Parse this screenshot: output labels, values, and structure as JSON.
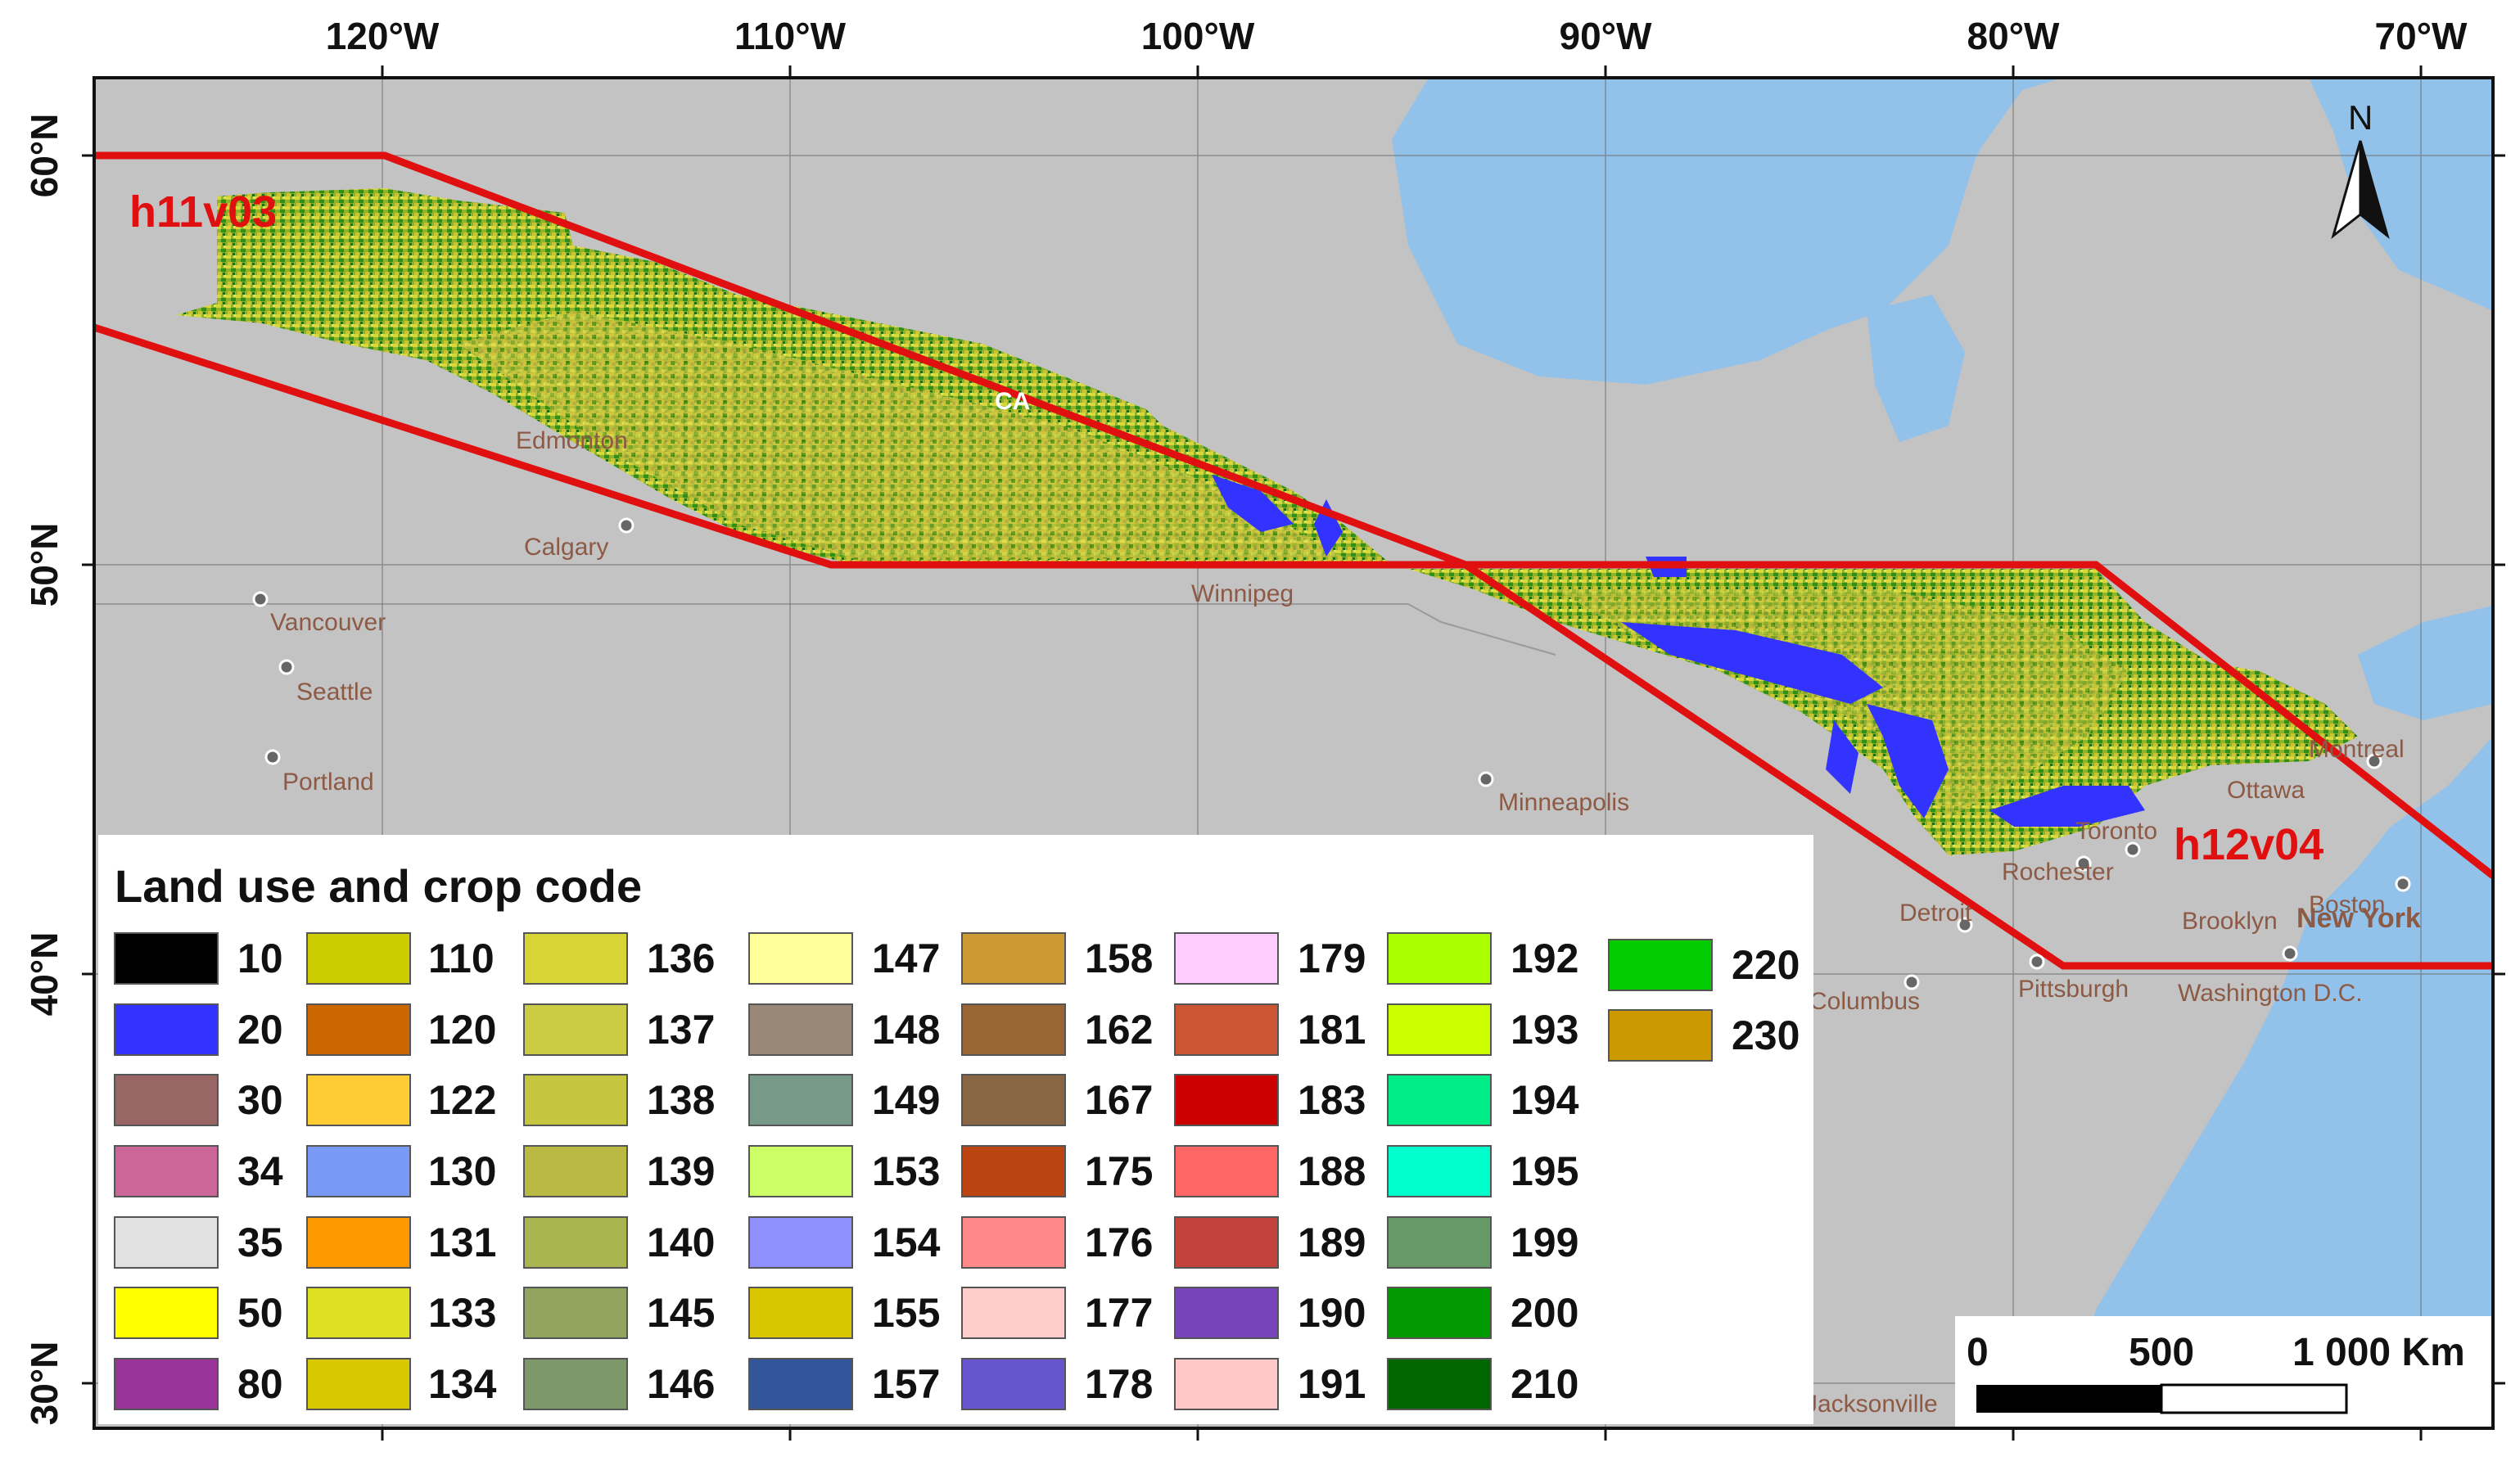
{
  "map": {
    "lon_ticks": [
      "120°W",
      "110°W",
      "100°W",
      "90°W",
      "80°W",
      "70°W"
    ],
    "lat_ticks": [
      "60°N",
      "50°N",
      "40°N",
      "30°N"
    ],
    "tile_labels": [
      "h11v03",
      "h12v04"
    ],
    "cities": [
      {
        "name": "Edmonton",
        "dot": false
      },
      {
        "name": "Calgary",
        "dot": true
      },
      {
        "name": "Vancouver",
        "dot": true
      },
      {
        "name": "Seattle",
        "dot": true
      },
      {
        "name": "Portland",
        "dot": true
      },
      {
        "name": "Winnipeg",
        "dot": false
      },
      {
        "name": "Minneapolis",
        "dot": true
      },
      {
        "name": "Detroit",
        "dot": true
      },
      {
        "name": "Toronto",
        "dot": true
      },
      {
        "name": "Rochester",
        "dot": true
      },
      {
        "name": "Pittsburgh",
        "dot": true
      },
      {
        "name": "Montreal",
        "dot": true
      },
      {
        "name": "Ottawa",
        "dot": false
      },
      {
        "name": "Brooklyn",
        "dot": false
      },
      {
        "name": "New York",
        "dot": true
      },
      {
        "name": "Boston",
        "dot": true
      },
      {
        "name": "Washington D.C.",
        "dot": false
      },
      {
        "name": "Columbus",
        "dot": true
      },
      {
        "name": "Jacksonville",
        "dot": true
      },
      {
        "name": "CA",
        "dot": false
      }
    ],
    "colors": {
      "ocean": "#92c1ea",
      "land": "#c3c3c3",
      "tile": "#e01010"
    }
  },
  "north_arrow": {
    "label": "N"
  },
  "scale_bar": {
    "labels": [
      "0",
      "500",
      "1 000 Km"
    ]
  },
  "legend": {
    "title": "Land use and crop code",
    "items": [
      {
        "code": "10",
        "color": "#000000"
      },
      {
        "code": "20",
        "color": "#3333ff"
      },
      {
        "code": "30",
        "color": "#996666"
      },
      {
        "code": "34",
        "color": "#cc6699"
      },
      {
        "code": "35",
        "color": "#e1e1e1"
      },
      {
        "code": "50",
        "color": "#ffff00"
      },
      {
        "code": "80",
        "color": "#993399"
      },
      {
        "code": "110",
        "color": "#cccc00"
      },
      {
        "code": "120",
        "color": "#cc6600"
      },
      {
        "code": "122",
        "color": "#ffcc33"
      },
      {
        "code": "130",
        "color": "#7899f6"
      },
      {
        "code": "131",
        "color": "#ff9900"
      },
      {
        "code": "133",
        "color": "#dde122"
      },
      {
        "code": "134",
        "color": "#d8c800"
      },
      {
        "code": "136",
        "color": "#d7d536"
      },
      {
        "code": "137",
        "color": "#cccc44"
      },
      {
        "code": "138",
        "color": "#c6c53f"
      },
      {
        "code": "139",
        "color": "#b9b944"
      },
      {
        "code": "140",
        "color": "#a8b550"
      },
      {
        "code": "145",
        "color": "#92a55f"
      },
      {
        "code": "146",
        "color": "#7d986a"
      },
      {
        "code": "147",
        "color": "#ffff99"
      },
      {
        "code": "148",
        "color": "#998877"
      },
      {
        "code": "149",
        "color": "#779988"
      },
      {
        "code": "153",
        "color": "#ccff66"
      },
      {
        "code": "154",
        "color": "#8f8ffe"
      },
      {
        "code": "155",
        "color": "#d8c700"
      },
      {
        "code": "157",
        "color": "#335599"
      },
      {
        "code": "158",
        "color": "#cc9933"
      },
      {
        "code": "162",
        "color": "#996633"
      },
      {
        "code": "167",
        "color": "#886644"
      },
      {
        "code": "175",
        "color": "#bb4411"
      },
      {
        "code": "176",
        "color": "#ff8888"
      },
      {
        "code": "177",
        "color": "#ffcccc"
      },
      {
        "code": "178",
        "color": "#6655cc"
      },
      {
        "code": "179",
        "color": "#ffccff"
      },
      {
        "code": "181",
        "color": "#cc5533"
      },
      {
        "code": "183",
        "color": "#cc0000"
      },
      {
        "code": "188",
        "color": "#ff6666"
      },
      {
        "code": "189",
        "color": "#c3423b"
      },
      {
        "code": "190",
        "color": "#7744bb"
      },
      {
        "code": "191",
        "color": "#ffc8c8"
      },
      {
        "code": "192",
        "color": "#aaff00"
      },
      {
        "code": "193",
        "color": "#ccff00"
      },
      {
        "code": "194",
        "color": "#00ee88"
      },
      {
        "code": "195",
        "color": "#00ffcc"
      },
      {
        "code": "199",
        "color": "#669966"
      },
      {
        "code": "200",
        "color": "#009900"
      },
      {
        "code": "210",
        "color": "#006600"
      },
      {
        "code": "220",
        "color": "#00cc00"
      },
      {
        "code": "230",
        "color": "#cc9900"
      }
    ]
  }
}
